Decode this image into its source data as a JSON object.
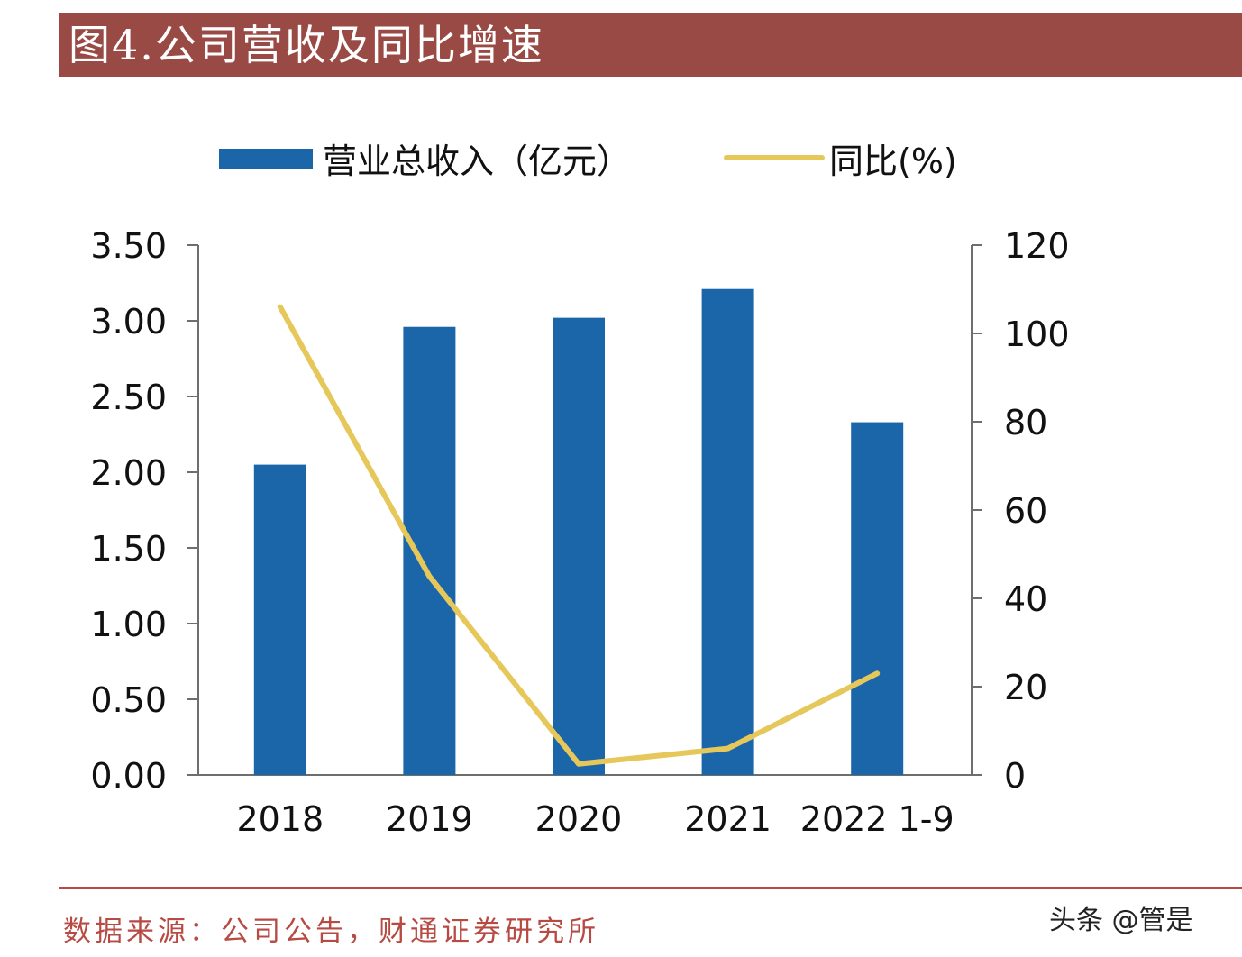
{
  "header": {
    "title": "图4.公司营收及同比增速"
  },
  "footer": {
    "source": "数据来源：公司公告，财通证券研究所",
    "watermark": "头条 @管是"
  },
  "colors": {
    "bar": "#1b66a8",
    "line": "#e6c75a",
    "title_bg": "#9a4a44",
    "source_text": "#b84a44"
  },
  "chart_data": {
    "type": "bar+line",
    "categories": [
      "2018",
      "2019",
      "2020",
      "2021",
      "2022 1-9"
    ],
    "series": [
      {
        "name": "营业总收入（亿元）",
        "type": "bar",
        "axis": "left",
        "values": [
          2.05,
          2.96,
          3.02,
          3.21,
          2.33
        ]
      },
      {
        "name": "同比(%)",
        "type": "line",
        "axis": "right",
        "values": [
          106,
          45,
          2.5,
          6,
          23
        ]
      }
    ],
    "y_left": {
      "min": 0,
      "max": 3.5,
      "ticks": [
        "0.00",
        "0.50",
        "1.00",
        "1.50",
        "2.00",
        "2.50",
        "3.00",
        "3.50"
      ]
    },
    "y_right": {
      "min": 0,
      "max": 120,
      "ticks": [
        "0",
        "20",
        "40",
        "60",
        "80",
        "100",
        "120"
      ]
    },
    "legend": {
      "position": "top"
    },
    "grid": false
  }
}
